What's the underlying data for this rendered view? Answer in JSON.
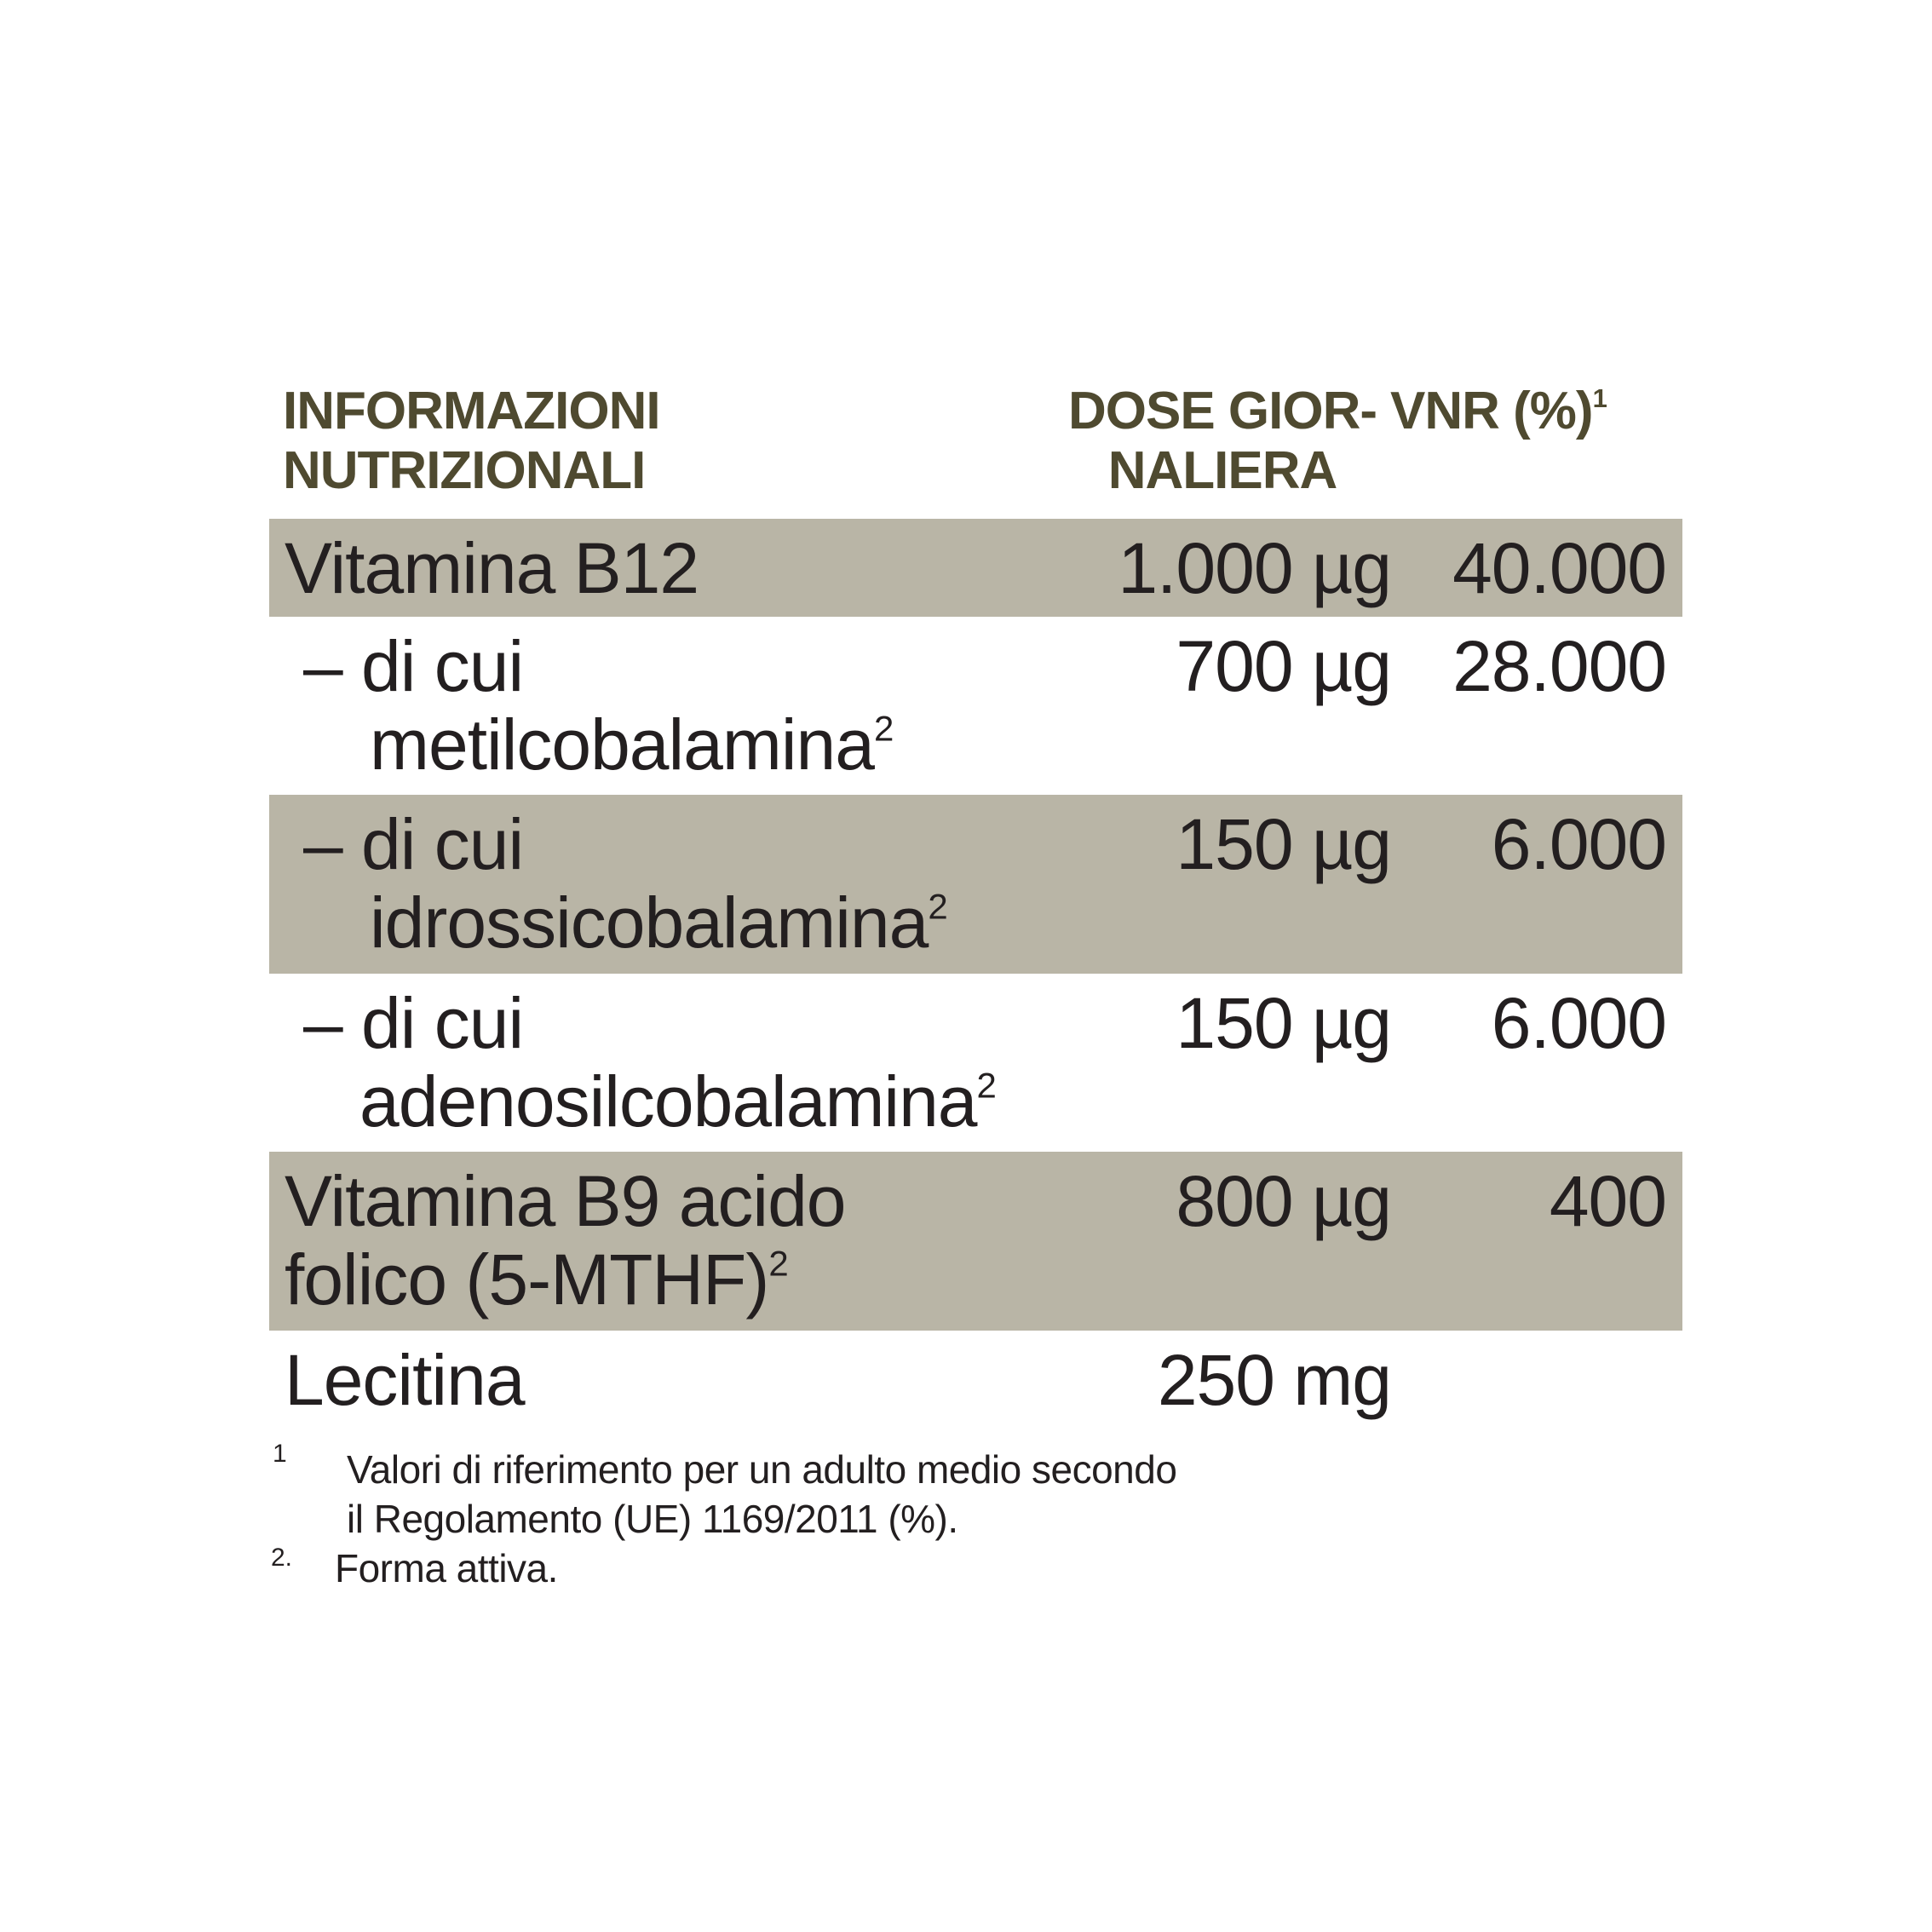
{
  "header": {
    "col1_line1": "INFORMAZIONI",
    "col1_line2": "NUTRIZIONALI",
    "col2_line1": "DOSE GIOR-",
    "col2_line2": "NALIERA",
    "col3": "VNR (%)",
    "col3_sup": "1"
  },
  "rows": [
    {
      "name": "Vitamina B12",
      "dose": "1.000 µg",
      "vnr": "40.000",
      "shaded": true
    },
    {
      "name": "– di cui metilcobalamina",
      "sup": "2",
      "dose": "700 µg",
      "vnr": "28.000",
      "shaded": false
    },
    {
      "name": "– di cui idrossicobalamina",
      "sup": "2",
      "dose": "150 µg",
      "vnr": "6.000",
      "shaded": true
    },
    {
      "name": "– di cui adenosilcobalamina",
      "sup": "2",
      "dose": "150 µg",
      "vnr": "6.000",
      "shaded": false
    },
    {
      "name": "Vitamina B9 acido folico (5-MTHF)",
      "sup": "2",
      "dose": "800 µg",
      "vnr": "400",
      "shaded": true
    },
    {
      "name": "Lecitina",
      "dose": "250 mg",
      "vnr": "",
      "shaded": false
    }
  ],
  "footnotes": [
    {
      "marker": "1",
      "text_line1": "Valori di riferimento per un adulto medio secondo",
      "text_line2": "il Regolamento (UE) 1169/2011 (%)."
    },
    {
      "marker": "2.",
      "text": "Forma attiva."
    }
  ],
  "colors": {
    "header_text": "#4f4a30",
    "row_shade": "#b9b5a6",
    "body_text": "#231f20"
  }
}
